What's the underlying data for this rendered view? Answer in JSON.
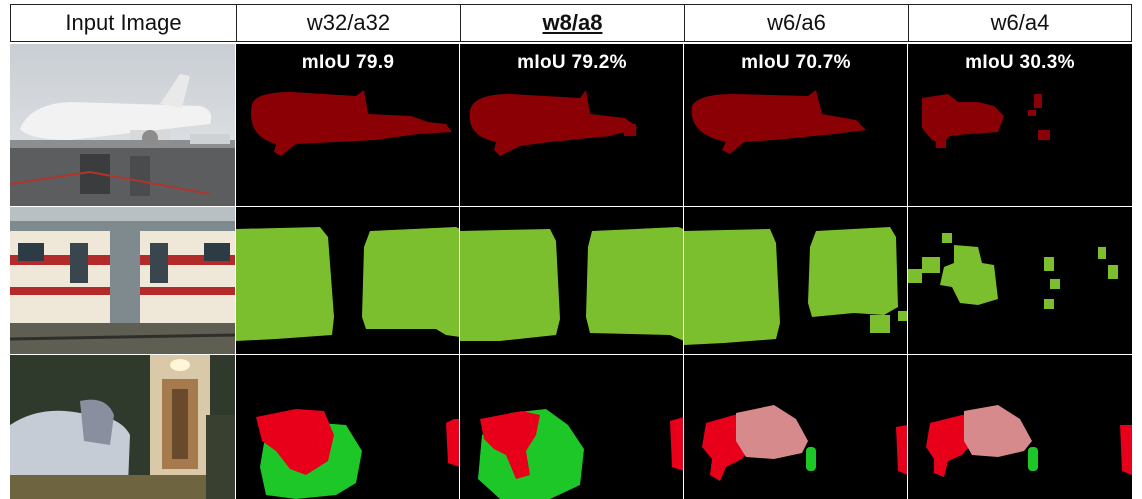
{
  "headers": [
    {
      "label": "Input Image",
      "emphasis": false
    },
    {
      "label": "w32/a32",
      "emphasis": false
    },
    {
      "label": "w8/a8",
      "emphasis": true
    },
    {
      "label": "w6/a6",
      "emphasis": false
    },
    {
      "label": "w6/a4",
      "emphasis": false
    }
  ],
  "miou": [
    "mIoU 79.9",
    "mIoU 79.2%",
    "mIoU 70.7%",
    "mIoU 30.3%"
  ],
  "colors": {
    "airplane_class": "#8b0005",
    "train_class": "#7cbf2e",
    "sofa_class": "#e8001a",
    "chair_class": "#1ec728",
    "person_class": "#d68a8c",
    "background": "#000000"
  }
}
